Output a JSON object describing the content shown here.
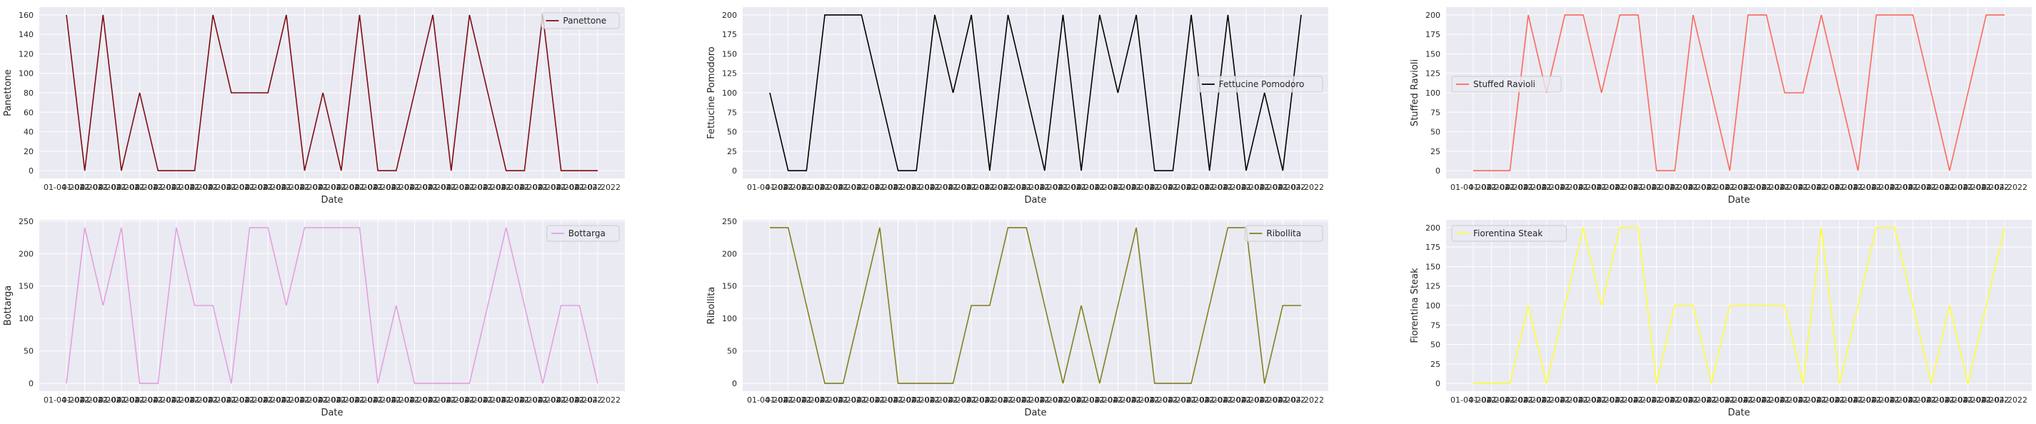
{
  "chart_data": [
    {
      "type": "line",
      "ylabel": "Panettone",
      "xlabel": "Date",
      "yticks": [
        0,
        20,
        40,
        60,
        80,
        100,
        120,
        140,
        160
      ],
      "ylim": [
        -8,
        168
      ],
      "legend_position": "upper-right",
      "series": [
        {
          "name": "Panettone",
          "color": "#7f0b12",
          "values": [
            160,
            0,
            160,
            0,
            80,
            0,
            0,
            0,
            160,
            80,
            80,
            80,
            160,
            0,
            80,
            0,
            160,
            0,
            0,
            80,
            160,
            0,
            160,
            80,
            0,
            0,
            160,
            0,
            0,
            0
          ]
        }
      ]
    },
    {
      "type": "line",
      "ylabel": "Fettucine Pomodoro",
      "xlabel": "Date",
      "yticks": [
        0,
        25,
        50,
        75,
        100,
        125,
        150,
        175,
        200
      ],
      "ylim": [
        -10,
        210
      ],
      "legend_position": "center-right",
      "series": [
        {
          "name": "Fettucine Pomodoro",
          "color": "#000000",
          "values": [
            100,
            0,
            0,
            200,
            200,
            200,
            100,
            0,
            0,
            200,
            100,
            200,
            0,
            200,
            100,
            0,
            200,
            0,
            200,
            100,
            200,
            0,
            0,
            200,
            0,
            200,
            0,
            100,
            0,
            200
          ]
        }
      ]
    },
    {
      "type": "line",
      "ylabel": "Stuffed Ravioli",
      "xlabel": "Date",
      "yticks": [
        0,
        25,
        50,
        75,
        100,
        125,
        150,
        175,
        200
      ],
      "ylim": [
        -10,
        210
      ],
      "legend_position": "center-left",
      "series": [
        {
          "name": "Stuffed Ravioli",
          "color": "#fa6a5a",
          "values": [
            0,
            0,
            0,
            200,
            100,
            200,
            200,
            100,
            200,
            200,
            0,
            0,
            200,
            100,
            0,
            200,
            200,
            100,
            100,
            200,
            100,
            0,
            200,
            200,
            200,
            100,
            0,
            100,
            200,
            200
          ]
        }
      ]
    },
    {
      "type": "line",
      "ylabel": "Bottarga",
      "xlabel": "Date",
      "yticks": [
        0,
        50,
        100,
        150,
        200,
        250
      ],
      "ylim": [
        -12,
        252
      ],
      "legend_position": "upper-right",
      "series": [
        {
          "name": "Bottarga",
          "color": "#e3a1e0",
          "values": [
            0,
            240,
            120,
            240,
            0,
            0,
            240,
            120,
            120,
            0,
            240,
            240,
            120,
            240,
            240,
            240,
            240,
            0,
            120,
            0,
            0,
            0,
            0,
            120,
            240,
            120,
            0,
            120,
            120,
            0
          ]
        }
      ]
    },
    {
      "type": "line",
      "ylabel": "Ribollita",
      "xlabel": "Date",
      "yticks": [
        0,
        50,
        100,
        150,
        200,
        250
      ],
      "ylim": [
        -12,
        252
      ],
      "legend_position": "upper-right",
      "series": [
        {
          "name": "Ribollita",
          "color": "#808020",
          "values": [
            240,
            240,
            120,
            0,
            0,
            120,
            240,
            0,
            0,
            0,
            0,
            120,
            120,
            240,
            240,
            120,
            0,
            120,
            0,
            120,
            240,
            0,
            0,
            0,
            120,
            240,
            240,
            0,
            120,
            120
          ]
        }
      ]
    },
    {
      "type": "line",
      "ylabel": "Fiorentina Steak",
      "xlabel": "Date",
      "yticks": [
        0,
        25,
        50,
        75,
        100,
        125,
        150,
        175,
        200
      ],
      "ylim": [
        -10,
        210
      ],
      "legend_position": "upper-left",
      "series": [
        {
          "name": "Fiorentina Steak",
          "color": "#ffff33",
          "values": [
            0,
            0,
            0,
            100,
            0,
            100,
            200,
            100,
            200,
            200,
            0,
            100,
            100,
            0,
            100,
            100,
            100,
            100,
            0,
            200,
            0,
            100,
            200,
            200,
            100,
            0,
            100,
            0,
            100,
            200
          ]
        }
      ]
    }
  ]
}
